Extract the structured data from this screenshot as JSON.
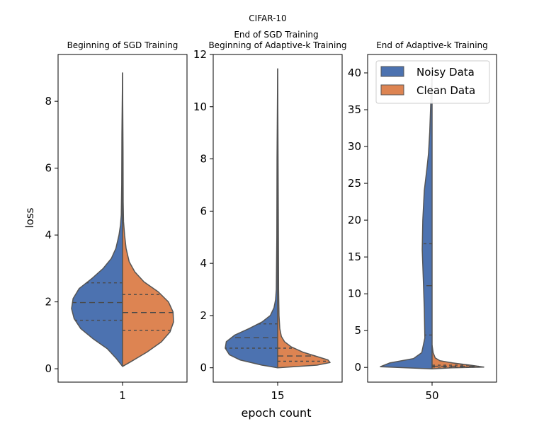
{
  "figure": {
    "suptitle": "CIFAR-10",
    "xlabel": "epoch count",
    "ylabel": "loss"
  },
  "legend": {
    "items": [
      {
        "label": "Noisy Data",
        "color": "#4c72b0"
      },
      {
        "label": "Clean Data",
        "color": "#dd8452"
      }
    ]
  },
  "colors": {
    "noisy": "#4c72b0",
    "clean": "#dd8452",
    "outline": "#555555"
  },
  "chart_data": [
    {
      "type": "violin",
      "split": true,
      "title": "Beginning of SGD Training",
      "category": "1",
      "ylim": [
        -0.4,
        9.4
      ],
      "yticks": [
        0,
        2,
        4,
        6,
        8
      ],
      "series": [
        {
          "name": "Noisy Data",
          "quartiles": [
            1.45,
            1.98,
            2.57
          ],
          "density": [
            [
              0.07,
              0.0
            ],
            [
              0.3,
              0.12
            ],
            [
              0.6,
              0.3
            ],
            [
              0.9,
              0.58
            ],
            [
              1.2,
              0.82
            ],
            [
              1.5,
              0.95
            ],
            [
              1.8,
              1.0
            ],
            [
              2.1,
              0.97
            ],
            [
              2.4,
              0.85
            ],
            [
              2.7,
              0.6
            ],
            [
              3.0,
              0.38
            ],
            [
              3.3,
              0.22
            ],
            [
              3.6,
              0.13
            ],
            [
              4.0,
              0.07
            ],
            [
              4.3,
              0.04
            ],
            [
              4.6,
              0.025
            ],
            [
              5.5,
              0.016
            ],
            [
              7.0,
              0.012
            ],
            [
              8.85,
              0.0
            ]
          ]
        },
        {
          "name": "Clean Data",
          "quartiles": [
            1.15,
            1.68,
            2.22
          ],
          "density": [
            [
              0.07,
              0.0
            ],
            [
              0.2,
              0.15
            ],
            [
              0.5,
              0.48
            ],
            [
              0.8,
              0.76
            ],
            [
              1.1,
              0.93
            ],
            [
              1.4,
              1.0
            ],
            [
              1.7,
              0.99
            ],
            [
              2.0,
              0.9
            ],
            [
              2.3,
              0.7
            ],
            [
              2.6,
              0.42
            ],
            [
              2.9,
              0.24
            ],
            [
              3.2,
              0.13
            ],
            [
              3.6,
              0.07
            ],
            [
              4.0,
              0.04
            ],
            [
              4.4,
              0.02
            ],
            [
              5.0,
              0.012
            ],
            [
              6.5,
              0.01
            ],
            [
              8.85,
              0.0
            ]
          ]
        }
      ]
    },
    {
      "type": "violin",
      "split": true,
      "title": "End of SGD Training\nBeginning of Adaptive-k Training",
      "category": "15",
      "ylim": [
        -0.55,
        12.0
      ],
      "yticks": [
        0,
        2,
        4,
        6,
        8,
        10,
        12
      ],
      "series": [
        {
          "name": "Noisy Data",
          "quartiles": [
            0.75,
            1.15,
            1.68
          ],
          "density": [
            [
              0.0,
              0.0
            ],
            [
              0.1,
              0.3
            ],
            [
              0.3,
              0.72
            ],
            [
              0.5,
              0.92
            ],
            [
              0.75,
              1.0
            ],
            [
              1.0,
              0.98
            ],
            [
              1.25,
              0.82
            ],
            [
              1.5,
              0.55
            ],
            [
              1.75,
              0.3
            ],
            [
              2.0,
              0.14
            ],
            [
              2.3,
              0.07
            ],
            [
              2.6,
              0.04
            ],
            [
              3.0,
              0.025
            ],
            [
              5.0,
              0.016
            ],
            [
              8.0,
              0.012
            ],
            [
              11.45,
              0.0
            ]
          ]
        },
        {
          "name": "Clean Data",
          "quartiles": [
            0.25,
            0.45,
            0.75
          ],
          "density": [
            [
              0.0,
              0.0
            ],
            [
              0.1,
              0.75
            ],
            [
              0.2,
              1.0
            ],
            [
              0.3,
              0.96
            ],
            [
              0.45,
              0.72
            ],
            [
              0.6,
              0.48
            ],
            [
              0.8,
              0.26
            ],
            [
              1.0,
              0.13
            ],
            [
              1.2,
              0.07
            ],
            [
              1.5,
              0.04
            ],
            [
              2.0,
              0.025
            ],
            [
              3.0,
              0.018
            ],
            [
              6.0,
              0.012
            ],
            [
              11.45,
              0.0
            ]
          ]
        }
      ]
    },
    {
      "type": "violin",
      "split": true,
      "title": "End of Adaptive-k Training",
      "category": "50",
      "ylim": [
        -2.0,
        42.5
      ],
      "yticks": [
        0,
        5,
        10,
        15,
        20,
        25,
        30,
        35,
        40
      ],
      "series": [
        {
          "name": "Noisy Data",
          "quartiles": [
            4.4,
            11.1,
            16.8
          ],
          "density": [
            [
              -0.2,
              0.0
            ],
            [
              0.1,
              1.0
            ],
            [
              0.6,
              0.82
            ],
            [
              1.2,
              0.36
            ],
            [
              2.0,
              0.2
            ],
            [
              4.0,
              0.14
            ],
            [
              8.0,
              0.15
            ],
            [
              12.0,
              0.17
            ],
            [
              16.0,
              0.19
            ],
            [
              20.0,
              0.18
            ],
            [
              24.0,
              0.15
            ],
            [
              27.0,
              0.1
            ],
            [
              29.0,
              0.07
            ],
            [
              32.0,
              0.045
            ],
            [
              35.0,
              0.03
            ],
            [
              37.0,
              0.02
            ],
            [
              39.0,
              0.01
            ],
            [
              40.0,
              0.0
            ]
          ]
        },
        {
          "name": "Clean Data",
          "quartiles": [
            0.05,
            0.15,
            0.3
          ],
          "density": [
            [
              -0.2,
              0.0
            ],
            [
              -0.05,
              0.4
            ],
            [
              0.05,
              1.0
            ],
            [
              0.3,
              0.75
            ],
            [
              0.6,
              0.4
            ],
            [
              0.9,
              0.15
            ],
            [
              1.3,
              0.06
            ],
            [
              2.0,
              0.02
            ],
            [
              3.0,
              0.0
            ]
          ]
        }
      ]
    }
  ]
}
